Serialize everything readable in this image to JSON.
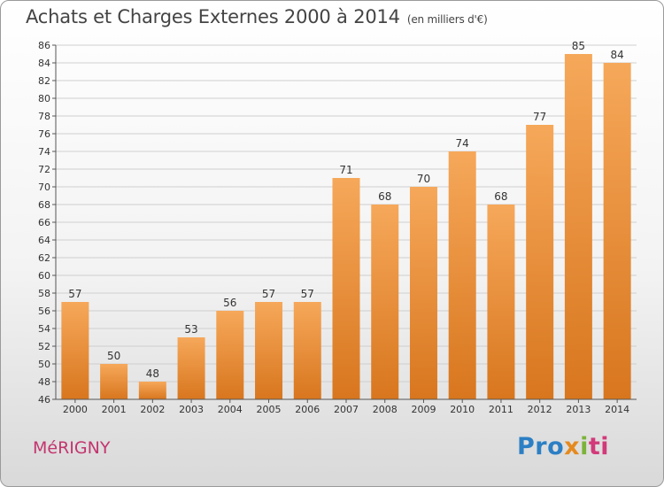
{
  "title": "Achats et Charges Externes 2000 à 2014",
  "unit": "(en milliers d'€)",
  "commune": "MéRIGNY",
  "logo": [
    "Pro",
    "x",
    "i",
    "ti"
  ],
  "colors": {
    "bar_light": "#f6a85a",
    "bar_dark": "#d8761e",
    "grid": "#cfcfcf",
    "commune": "#c3356e"
  },
  "chart_data": {
    "type": "bar",
    "title": "Achats et Charges Externes 2000 à 2014",
    "categories": [
      "2000",
      "2001",
      "2002",
      "2003",
      "2004",
      "2005",
      "2006",
      "2007",
      "2008",
      "2009",
      "2010",
      "2011",
      "2012",
      "2013",
      "2014"
    ],
    "values": [
      57,
      50,
      48,
      53,
      56,
      57,
      57,
      71,
      68,
      70,
      74,
      68,
      77,
      85,
      84
    ],
    "ylim": [
      46,
      86
    ],
    "yticks": [
      46,
      48,
      50,
      52,
      54,
      56,
      58,
      60,
      62,
      64,
      66,
      68,
      70,
      72,
      74,
      76,
      78,
      80,
      82,
      84,
      86
    ],
    "grid": true,
    "xlabel": "",
    "ylabel": ""
  }
}
